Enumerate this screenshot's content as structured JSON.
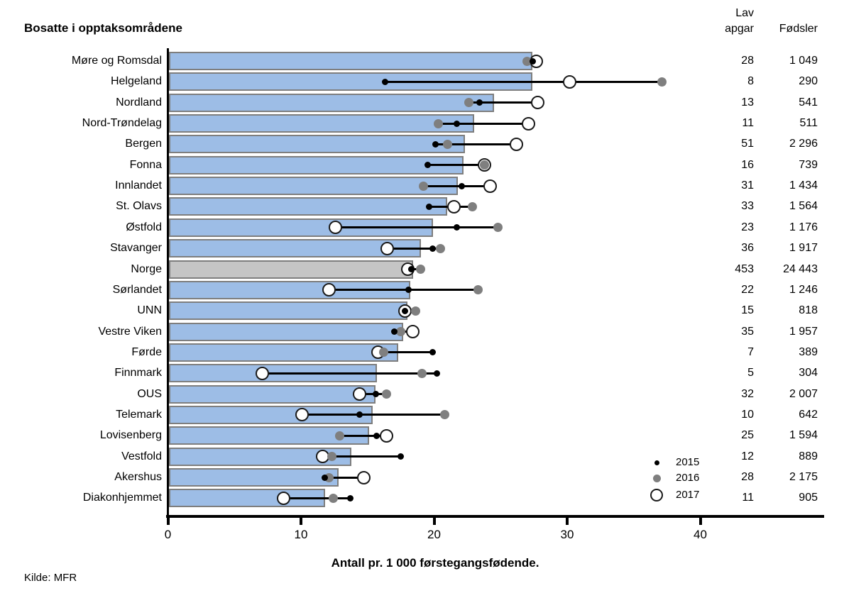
{
  "title": "Bosatte i opptaksområdene",
  "source": "Kilde: MFR",
  "columns": {
    "lav_line1": "Lav",
    "lav_line2": "apgar",
    "fodsler": "Fødsler"
  },
  "legend": [
    {
      "label": "2015",
      "marker": "small-black-dot"
    },
    {
      "label": "2016",
      "marker": "gray-dot"
    },
    {
      "label": "2017",
      "marker": "open-circle"
    }
  ],
  "colors": {
    "bar_fill": "#9DBDE6",
    "bar_border": "#7E7E7E",
    "norge_fill": "#C5C5C5",
    "dot_2015": "#000000",
    "dot_2016": "#7F7F7F",
    "dot_2017_fill": "#FFFFFF",
    "dot_2017_border": "#1A1A1A",
    "axis": "#000000"
  },
  "chart_data": {
    "type": "bar",
    "orientation": "horizontal",
    "title": "Bosatte i opptaksområdene",
    "xlabel": "Antall pr. 1 000  førstegangsfødende.",
    "x_ticks": [
      0,
      10,
      20,
      30,
      40
    ],
    "xlim": [
      0,
      49.3
    ],
    "grid": false,
    "legend_position": "bottom-right",
    "highlight_index": 10,
    "categories": [
      "Møre og Romsdal",
      "Helgeland",
      "Nordland",
      "Nord-Trøndelag",
      "Bergen",
      "Fonna",
      "Innlandet",
      "St. Olavs",
      "Østfold",
      "Stavanger",
      "Norge",
      "Sørlandet",
      "UNN",
      "Vestre Viken",
      "Førde",
      "Finnmark",
      "OUS",
      "Telemark",
      "Lovisenberg",
      "Vestfold",
      "Akershus",
      "Diakonhjemmet"
    ],
    "bar_values": [
      27.4,
      27.4,
      24.5,
      23.0,
      22.3,
      22.2,
      21.8,
      21.0,
      19.9,
      19.0,
      18.4,
      18.2,
      18.0,
      17.7,
      17.3,
      15.7,
      15.6,
      15.4,
      15.1,
      13.8,
      12.8,
      11.8
    ],
    "series": [
      {
        "name": "2015",
        "values": [
          27.4,
          16.3,
          23.4,
          21.7,
          20.1,
          19.5,
          22.1,
          19.6,
          21.7,
          19.9,
          18.3,
          18.1,
          17.8,
          17.0,
          19.9,
          20.2,
          15.6,
          14.4,
          15.7,
          17.5,
          11.8,
          13.7
        ]
      },
      {
        "name": "2016",
        "values": [
          27.0,
          37.1,
          22.6,
          20.3,
          21.0,
          23.8,
          19.2,
          22.9,
          24.8,
          20.5,
          19.0,
          23.3,
          18.6,
          17.5,
          16.2,
          19.1,
          16.4,
          20.8,
          12.9,
          12.3,
          12.1,
          12.4
        ]
      },
      {
        "name": "2017",
        "values": [
          27.7,
          30.2,
          27.8,
          27.1,
          26.2,
          23.8,
          24.2,
          21.5,
          12.6,
          16.5,
          18.0,
          12.1,
          17.8,
          18.4,
          15.8,
          7.1,
          14.4,
          10.1,
          16.4,
          11.6,
          14.7,
          8.7
        ]
      }
    ],
    "table": {
      "headers": [
        "Lav apgar",
        "Fødsler"
      ],
      "rows": [
        [
          "28",
          "1 049"
        ],
        [
          "8",
          "290"
        ],
        [
          "13",
          "541"
        ],
        [
          "11",
          "511"
        ],
        [
          "51",
          "2 296"
        ],
        [
          "16",
          "739"
        ],
        [
          "31",
          "1 434"
        ],
        [
          "33",
          "1 564"
        ],
        [
          "23",
          "1 176"
        ],
        [
          "36",
          "1 917"
        ],
        [
          "453",
          "24 443"
        ],
        [
          "22",
          "1 246"
        ],
        [
          "15",
          "818"
        ],
        [
          "35",
          "1 957"
        ],
        [
          "7",
          "389"
        ],
        [
          "5",
          "304"
        ],
        [
          "32",
          "2 007"
        ],
        [
          "10",
          "642"
        ],
        [
          "25",
          "1 594"
        ],
        [
          "12",
          "889"
        ],
        [
          "28",
          "2 175"
        ],
        [
          "11",
          "905"
        ]
      ]
    }
  }
}
